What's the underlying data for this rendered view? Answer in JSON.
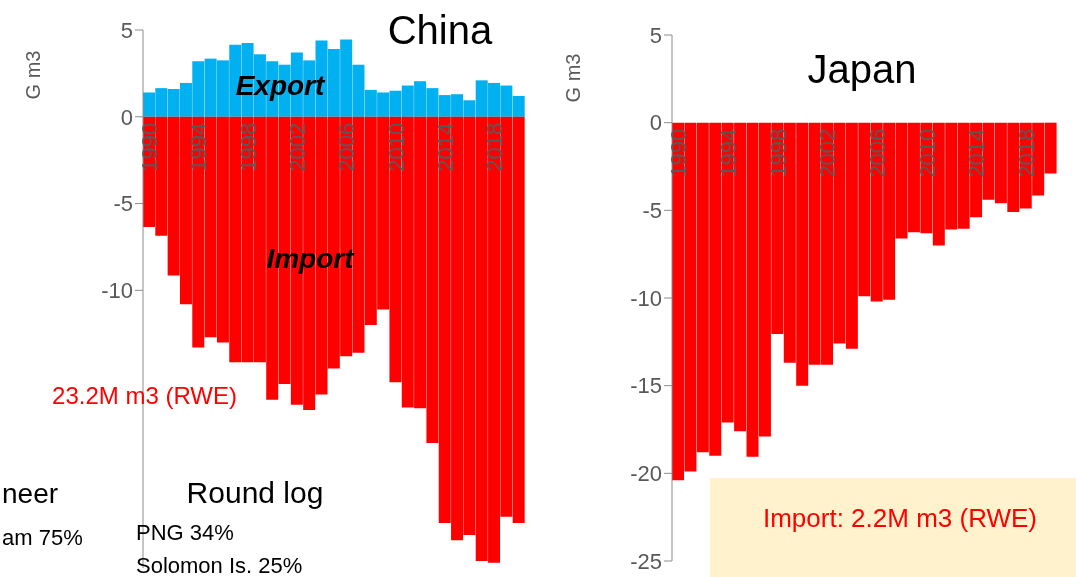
{
  "chart_data": [
    {
      "type": "bar",
      "title": "China",
      "ylabel": "G m3",
      "stacked": true,
      "ylim": [
        -26,
        5
      ],
      "yticks": [
        5,
        0,
        -5,
        -10
      ],
      "categories": [
        "1990",
        null,
        null,
        null,
        "1994",
        null,
        null,
        null,
        "1998",
        null,
        null,
        null,
        "2002",
        null,
        null,
        null,
        "2006",
        null,
        null,
        null,
        "2010",
        null,
        null,
        null,
        "2014",
        null,
        null,
        null,
        "2018",
        null,
        null
      ],
      "series": [
        {
          "name": "Export",
          "color": "#00b0f0",
          "values": [
            1.4,
            1.65,
            1.6,
            1.95,
            3.2,
            3.35,
            3.25,
            4.15,
            4.25,
            3.6,
            3.2,
            3.0,
            3.7,
            3.25,
            4.4,
            3.9,
            4.45,
            3.0,
            1.55,
            1.4,
            1.5,
            1.8,
            2.05,
            1.65,
            1.25,
            1.3,
            0.95,
            2.1,
            1.95,
            1.8,
            1.2
          ]
        },
        {
          "name": "Import",
          "color": "#ff0000",
          "values": [
            -6.35,
            -6.85,
            -9.15,
            -10.8,
            -13.3,
            -12.7,
            -13.0,
            -14.15,
            -14.15,
            -14.15,
            -16.3,
            -15.4,
            -16.6,
            -16.9,
            -16.0,
            -14.5,
            -13.8,
            -13.6,
            -12.0,
            -11.1,
            -15.3,
            -16.75,
            -16.8,
            -18.8,
            -23.4,
            -24.4,
            -24.1,
            -25.6,
            -25.7,
            -23.05,
            -23.4
          ]
        }
      ],
      "annotations": [
        "23.2M m3 (RWE)",
        "neer",
        "am 75%",
        "Round log",
        "PNG 34%",
        "Solomon Is. 25%"
      ]
    },
    {
      "type": "bar",
      "title": "Japan",
      "ylabel": "G m3",
      "ylim": [
        -25,
        5
      ],
      "yticks": [
        5,
        0,
        -5,
        -10,
        -15,
        -20,
        -25
      ],
      "categories": [
        "1990",
        null,
        null,
        null,
        "1994",
        null,
        null,
        null,
        "1998",
        null,
        null,
        null,
        "2002",
        null,
        null,
        null,
        "2006",
        null,
        null,
        null,
        "2010",
        null,
        null,
        null,
        "2014",
        null,
        null,
        null,
        "2018",
        null,
        null
      ],
      "series": [
        {
          "color": "#ff0000",
          "values": [
            -20.4,
            -19.9,
            -18.8,
            -19.0,
            -17.1,
            -17.6,
            -19.05,
            -17.9,
            -12.05,
            -13.7,
            -15.0,
            -13.8,
            -13.8,
            -12.6,
            -12.9,
            -9.9,
            -10.2,
            -10.1,
            -6.6,
            -6.25,
            -6.3,
            -7.0,
            -6.1,
            -6.05,
            -5.4,
            -4.4,
            -4.6,
            -5.1,
            -4.9,
            -4.15,
            -2.9
          ]
        }
      ],
      "annotations": [
        "Import: 2.2M m3 (RWE)"
      ]
    }
  ]
}
